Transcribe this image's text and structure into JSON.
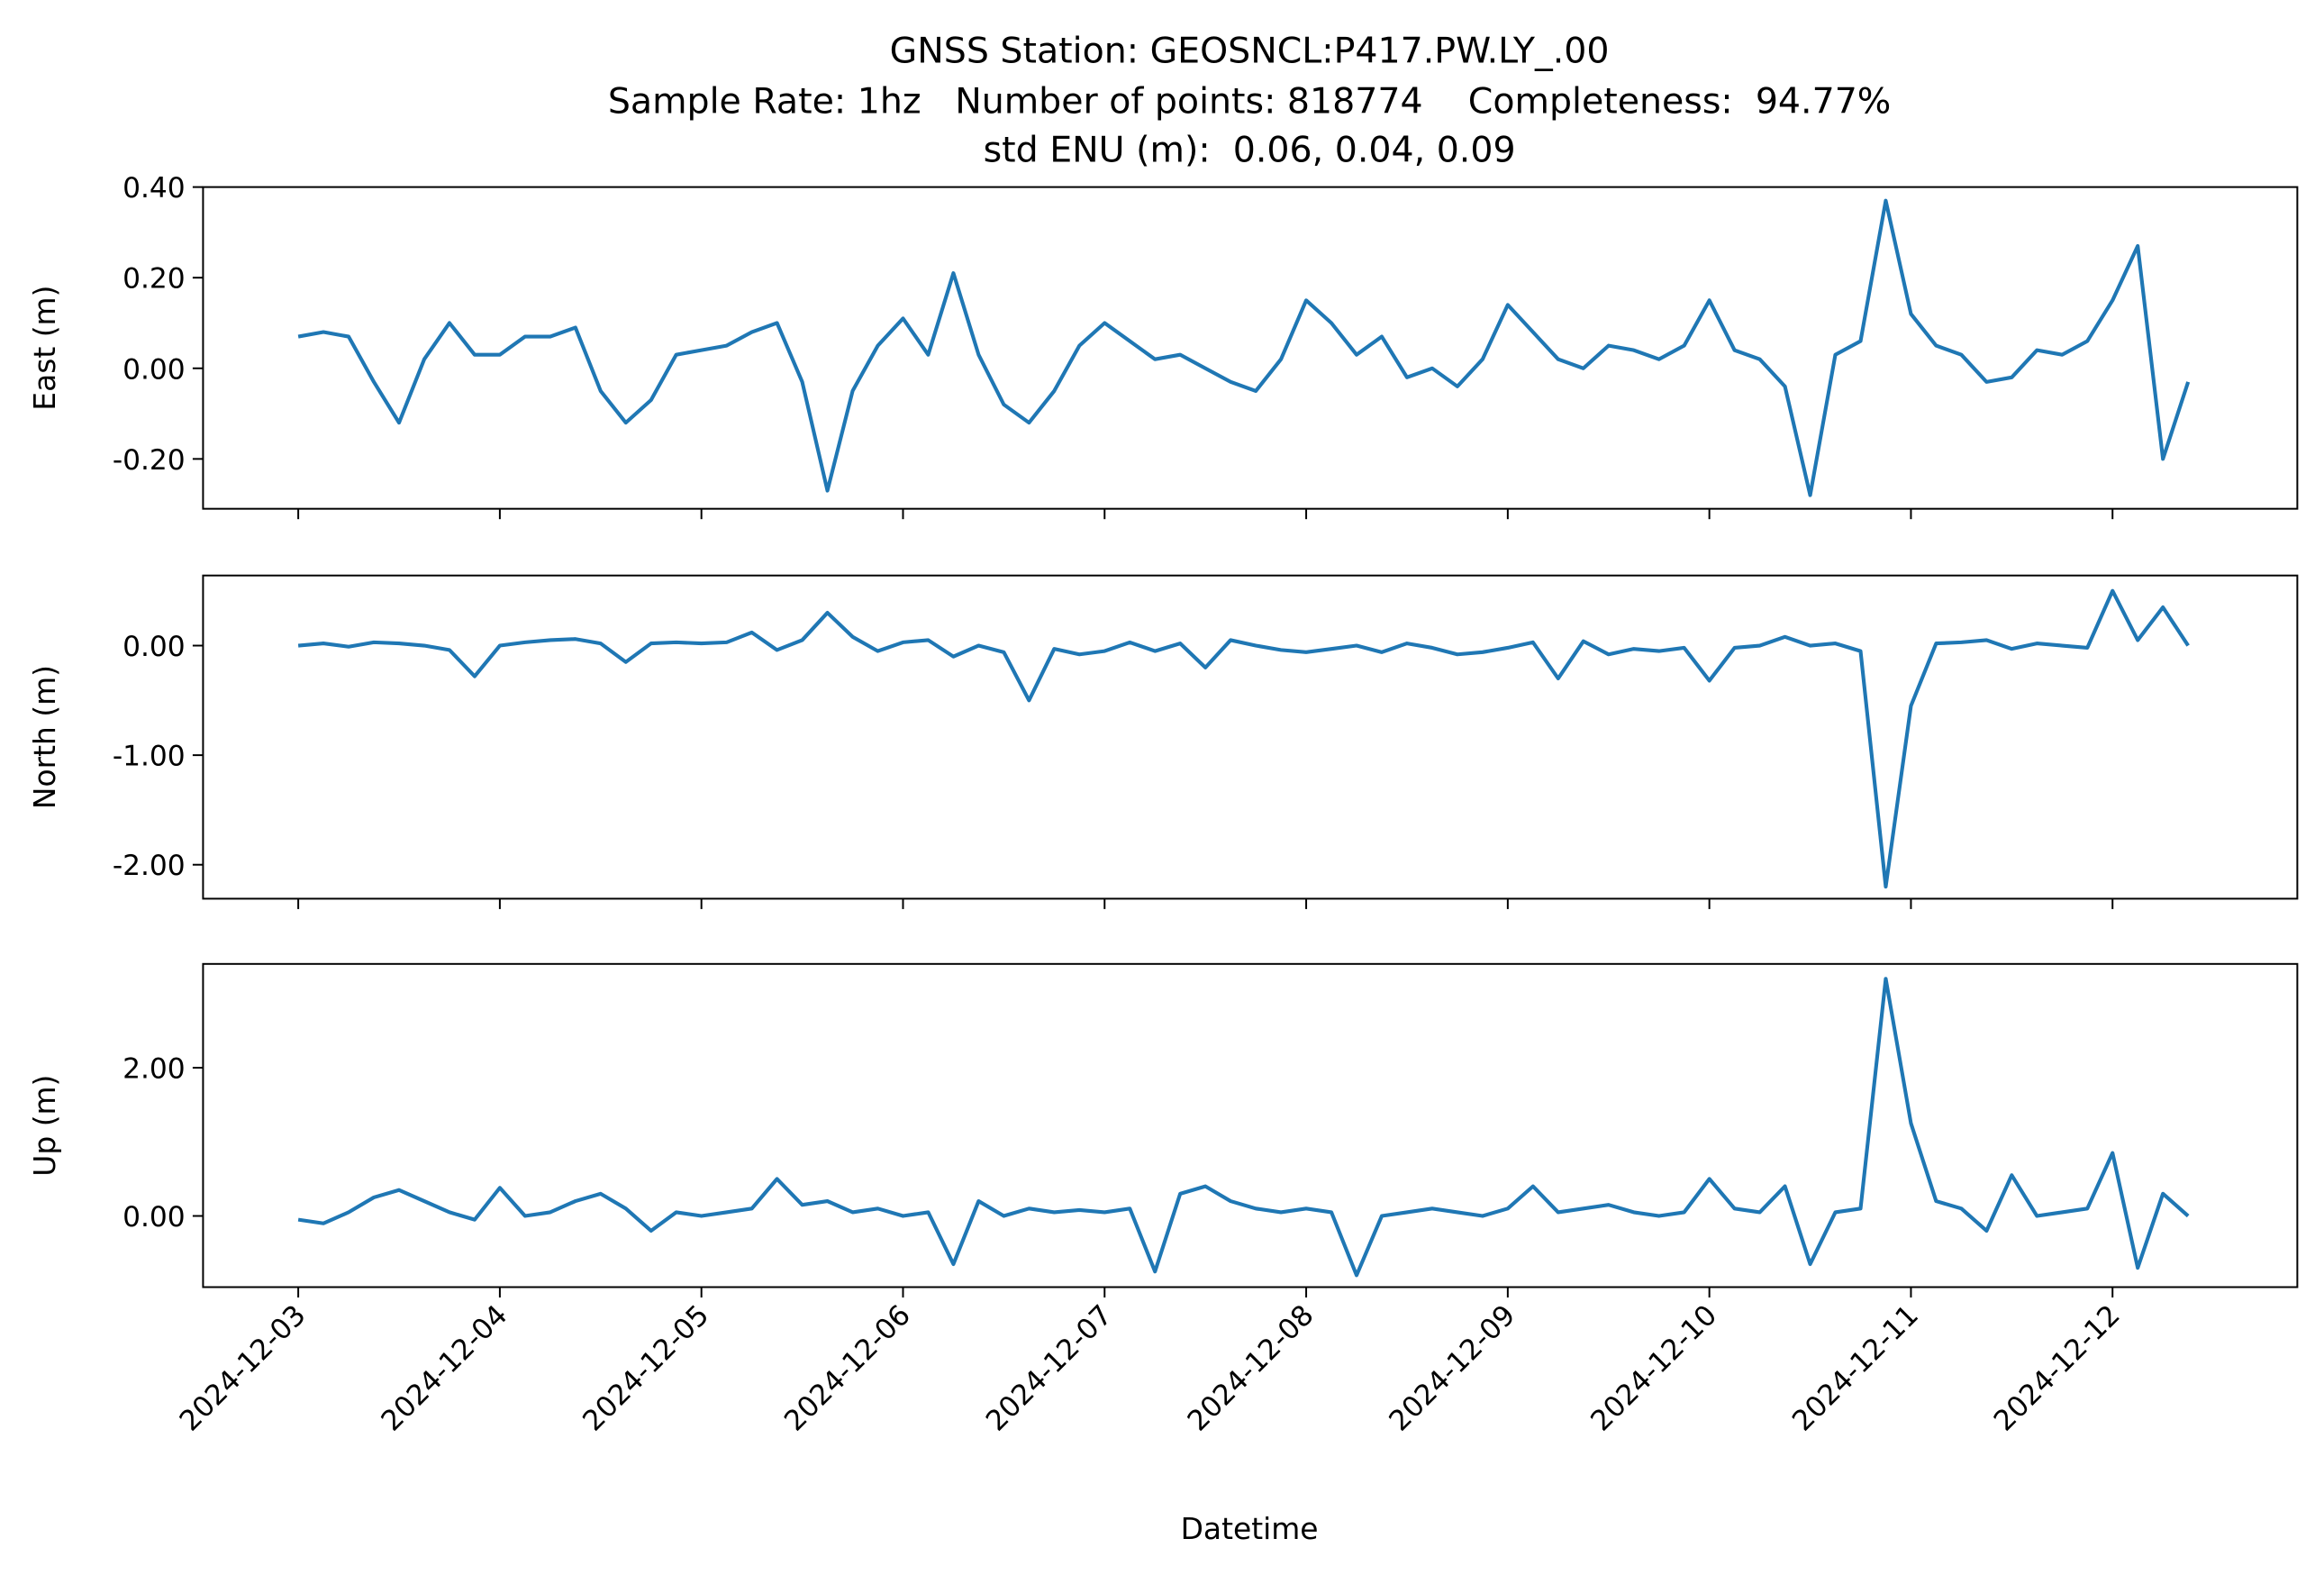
{
  "chart_data": {
    "title": [
      "GNSS Station: GEOSNCL:P417.PW.LY_.00",
      "Sample Rate: 1hz   Number of points: 818774    Completeness:  94.77%",
      "std ENU (m):  0.06, 0.04, 0.09"
    ],
    "xlabel": "Datetime",
    "xlim": [
      "2024-12-02T12:40",
      "2024-12-12T22:00"
    ],
    "xticks": [
      "2024-12-03",
      "2024-12-04",
      "2024-12-05",
      "2024-12-06",
      "2024-12-07",
      "2024-12-08",
      "2024-12-09",
      "2024-12-10",
      "2024-12-11",
      "2024-12-12"
    ],
    "x": [
      "2024-12-03T00:00",
      "2024-12-03T03:00",
      "2024-12-03T06:00",
      "2024-12-03T09:00",
      "2024-12-03T12:00",
      "2024-12-03T15:00",
      "2024-12-03T18:00",
      "2024-12-03T21:00",
      "2024-12-04T00:00",
      "2024-12-04T03:00",
      "2024-12-04T06:00",
      "2024-12-04T09:00",
      "2024-12-04T12:00",
      "2024-12-04T15:00",
      "2024-12-04T18:00",
      "2024-12-04T21:00",
      "2024-12-05T00:00",
      "2024-12-05T03:00",
      "2024-12-05T06:00",
      "2024-12-05T09:00",
      "2024-12-05T12:00",
      "2024-12-05T15:00",
      "2024-12-05T18:00",
      "2024-12-05T21:00",
      "2024-12-06T00:00",
      "2024-12-06T03:00",
      "2024-12-06T06:00",
      "2024-12-06T09:00",
      "2024-12-06T12:00",
      "2024-12-06T15:00",
      "2024-12-06T18:00",
      "2024-12-06T21:00",
      "2024-12-07T00:00",
      "2024-12-07T03:00",
      "2024-12-07T06:00",
      "2024-12-07T09:00",
      "2024-12-07T12:00",
      "2024-12-07T15:00",
      "2024-12-07T18:00",
      "2024-12-07T21:00",
      "2024-12-08T00:00",
      "2024-12-08T03:00",
      "2024-12-08T06:00",
      "2024-12-08T09:00",
      "2024-12-08T12:00",
      "2024-12-08T15:00",
      "2024-12-08T18:00",
      "2024-12-08T21:00",
      "2024-12-09T00:00",
      "2024-12-09T03:00",
      "2024-12-09T06:00",
      "2024-12-09T09:00",
      "2024-12-09T12:00",
      "2024-12-09T15:00",
      "2024-12-09T18:00",
      "2024-12-09T21:00",
      "2024-12-10T00:00",
      "2024-12-10T03:00",
      "2024-12-10T06:00",
      "2024-12-10T09:00",
      "2024-12-10T12:00",
      "2024-12-10T15:00",
      "2024-12-10T18:00",
      "2024-12-10T21:00",
      "2024-12-11T00:00",
      "2024-12-11T03:00",
      "2024-12-11T06:00",
      "2024-12-11T09:00",
      "2024-12-11T12:00",
      "2024-12-11T15:00",
      "2024-12-11T18:00",
      "2024-12-11T21:00",
      "2024-12-12T00:00",
      "2024-12-12T03:00",
      "2024-12-12T06:00",
      "2024-12-12T09:00"
    ],
    "panels": [
      {
        "type": "line",
        "ylabel": "East (m)",
        "color": "#1f77b4",
        "ylim": [
          -0.31,
          0.4
        ],
        "yticks": [
          {
            "value": -0.2,
            "label": "-0.20"
          },
          {
            "value": 0,
            "label": "0.00"
          },
          {
            "value": 0.2,
            "label": "0.20"
          },
          {
            "value": 0.4,
            "label": "0.40"
          }
        ],
        "values": [
          0.07,
          0.08,
          0.07,
          -0.03,
          -0.12,
          0.02,
          0.1,
          0.03,
          0.03,
          0.07,
          0.07,
          0.09,
          -0.05,
          -0.12,
          -0.07,
          0.03,
          0.04,
          0.05,
          0.08,
          0.1,
          -0.03,
          -0.27,
          -0.05,
          0.05,
          0.11,
          0.03,
          0.21,
          0.03,
          -0.08,
          -0.12,
          -0.05,
          0.05,
          0.1,
          0.06,
          0.02,
          0.03,
          0.0,
          -0.03,
          -0.05,
          0.02,
          0.15,
          0.1,
          0.03,
          0.07,
          -0.02,
          0.0,
          -0.04,
          0.02,
          0.14,
          0.08,
          0.02,
          0.0,
          0.05,
          0.04,
          0.02,
          0.05,
          0.15,
          0.04,
          0.02,
          -0.04,
          -0.28,
          0.03,
          0.06,
          0.37,
          0.12,
          0.05,
          0.03,
          -0.03,
          -0.02,
          0.04,
          0.03,
          0.06,
          0.15,
          0.27,
          -0.2,
          -0.03
        ]
      },
      {
        "type": "line",
        "ylabel": "North (m)",
        "color": "#1f77b4",
        "ylim": [
          -2.31,
          0.64
        ],
        "yticks": [
          {
            "value": -2,
            "label": "-2.00"
          },
          {
            "value": -1,
            "label": "-1.00"
          },
          {
            "value": 0,
            "label": "0.00"
          }
        ],
        "values": [
          0.0,
          0.02,
          -0.01,
          0.03,
          0.02,
          0.0,
          -0.04,
          -0.28,
          0.0,
          0.03,
          0.05,
          0.06,
          0.02,
          -0.15,
          0.02,
          0.03,
          0.02,
          0.03,
          0.12,
          -0.04,
          0.05,
          0.3,
          0.08,
          -0.05,
          0.03,
          0.05,
          -0.1,
          0.0,
          -0.06,
          -0.5,
          -0.03,
          -0.08,
          -0.05,
          0.03,
          -0.05,
          0.02,
          -0.2,
          0.05,
          0.0,
          -0.04,
          -0.06,
          -0.03,
          0.0,
          -0.06,
          0.02,
          -0.02,
          -0.08,
          -0.06,
          -0.02,
          0.03,
          -0.3,
          0.04,
          -0.08,
          -0.03,
          -0.05,
          -0.02,
          -0.32,
          -0.02,
          0.0,
          0.08,
          0.0,
          0.02,
          -0.05,
          -2.2,
          -0.55,
          0.02,
          0.03,
          0.05,
          -0.03,
          0.02,
          0.0,
          -0.02,
          0.5,
          0.05,
          0.35,
          0.0
        ]
      },
      {
        "type": "line",
        "ylabel": "Up (m)",
        "color": "#1f77b4",
        "ylim": [
          -0.96,
          3.4
        ],
        "yticks": [
          {
            "value": 0,
            "label": "0.00"
          },
          {
            "value": 2,
            "label": "2.00"
          }
        ],
        "values": [
          -0.05,
          -0.1,
          0.05,
          0.25,
          0.35,
          0.2,
          0.05,
          -0.05,
          0.38,
          0.0,
          0.05,
          0.2,
          0.3,
          0.1,
          -0.2,
          0.05,
          0.0,
          0.05,
          0.1,
          0.5,
          0.15,
          0.2,
          0.05,
          0.1,
          0.0,
          0.05,
          -0.65,
          0.2,
          0.0,
          0.1,
          0.05,
          0.08,
          0.05,
          0.1,
          -0.75,
          0.3,
          0.4,
          0.2,
          0.1,
          0.05,
          0.1,
          0.05,
          -0.8,
          0.0,
          0.05,
          0.1,
          0.05,
          0.0,
          0.1,
          0.4,
          0.05,
          0.1,
          0.15,
          0.05,
          0.0,
          0.05,
          0.5,
          0.1,
          0.05,
          0.4,
          -0.65,
          0.05,
          0.1,
          3.2,
          1.25,
          0.2,
          0.1,
          -0.2,
          0.55,
          0.0,
          0.05,
          0.1,
          0.85,
          -0.7,
          0.3,
          0.0
        ]
      }
    ]
  }
}
